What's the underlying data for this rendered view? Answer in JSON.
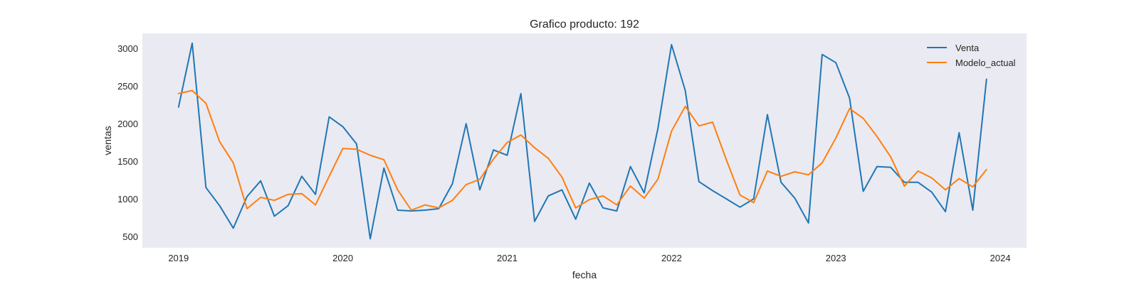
{
  "colors": {
    "plot_bg": "#EAEAF2",
    "series_1": "#1f77b4",
    "series_2": "#ff7f0e",
    "text": "#262626"
  },
  "chart_data": {
    "type": "line",
    "title": "Grafico producto: 192",
    "xlabel": "fecha",
    "ylabel": "ventas",
    "grid": false,
    "legend_position": "top-right",
    "xlim": [
      2018.78,
      2024.16
    ],
    "ylim": [
      350,
      3200
    ],
    "x_ticks": [
      {
        "value": 2019,
        "label": "2019"
      },
      {
        "value": 2020,
        "label": "2020"
      },
      {
        "value": 2021,
        "label": "2021"
      },
      {
        "value": 2022,
        "label": "2022"
      },
      {
        "value": 2023,
        "label": "2023"
      },
      {
        "value": 2024,
        "label": "2024"
      }
    ],
    "y_ticks": [
      {
        "value": 500,
        "label": "500"
      },
      {
        "value": 1000,
        "label": "1000"
      },
      {
        "value": 1500,
        "label": "1500"
      },
      {
        "value": 2000,
        "label": "2000"
      },
      {
        "value": 2500,
        "label": "2500"
      },
      {
        "value": 3000,
        "label": "3000"
      }
    ],
    "x_start": 2019.0,
    "x_step": 0.08333,
    "series": [
      {
        "name": "Venta",
        "color": "#1f77b4",
        "values": [
          2220,
          3070,
          1150,
          910,
          610,
          1030,
          1240,
          770,
          910,
          1300,
          1060,
          2090,
          1960,
          1730,
          470,
          1410,
          850,
          840,
          850,
          870,
          1200,
          2000,
          1120,
          1650,
          1580,
          2400,
          700,
          1040,
          1120,
          730,
          1210,
          880,
          840,
          1430,
          1080,
          1930,
          3050,
          2440,
          1230,
          1110,
          1000,
          890,
          1000,
          2120,
          1220,
          1010,
          680,
          2920,
          2810,
          2340,
          1100,
          1430,
          1420,
          1220,
          1220,
          1090,
          830,
          1880,
          850,
          2590
        ]
      },
      {
        "name": "Modelo_actual",
        "color": "#ff7f0e",
        "values": [
          2400,
          2440,
          2270,
          1760,
          1480,
          870,
          1020,
          980,
          1060,
          1070,
          920,
          1300,
          1670,
          1660,
          1580,
          1520,
          1120,
          850,
          920,
          880,
          980,
          1190,
          1260,
          1530,
          1750,
          1850,
          1680,
          1540,
          1290,
          880,
          990,
          1040,
          920,
          1170,
          1010,
          1260,
          1900,
          2230,
          1970,
          2020,
          1520,
          1050,
          950,
          1370,
          1300,
          1360,
          1320,
          1480,
          1810,
          2200,
          2070,
          1830,
          1560,
          1170,
          1370,
          1280,
          1120,
          1270,
          1160,
          1390
        ]
      }
    ]
  }
}
